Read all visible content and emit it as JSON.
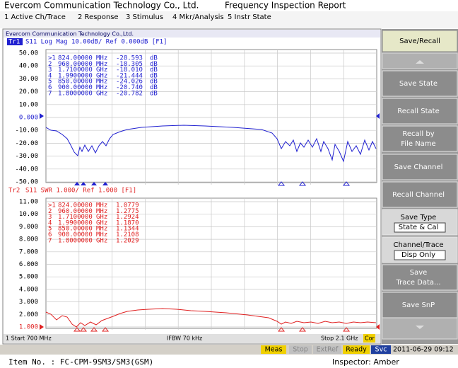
{
  "header": {
    "title": "Evercom Communication Technology Co., Ltd.",
    "report": "Frequency Inspection Report"
  },
  "menu": [
    "1 Active Ch/Trace",
    "2 Response",
    "3 Stimulus",
    "4 Mkr/Analysis",
    "5 Instr State"
  ],
  "screen": {
    "channel_title": "Evercom Communication Technology Co.,Ltd.",
    "trace1": {
      "label": "Tr1",
      "info": "S11 Log Mag 10.00dB/ Ref 0.000dB [F1]",
      "yticks": [
        "50.00",
        "40.00",
        "30.00",
        "20.00",
        "10.00",
        "0.000",
        "-10.00",
        "-20.00",
        "-30.00",
        "-40.00",
        "-50.00"
      ],
      "markers": [
        [
          ">1",
          "824.00000",
          "MHz",
          "-28.593",
          "dB"
        ],
        [
          "2",
          "960.00000",
          "MHz",
          "-18.305",
          "dB"
        ],
        [
          "3",
          "1.7100000",
          "GHz",
          "-18.010",
          "dB"
        ],
        [
          "4",
          "1.9900000",
          "GHz",
          "-21.444",
          "dB"
        ],
        [
          "5",
          "850.00000",
          "MHz",
          "-24.026",
          "dB"
        ],
        [
          "6",
          "900.00000",
          "MHz",
          "-20.740",
          "dB"
        ],
        [
          "7",
          "1.8000000",
          "GHz",
          "-20.782",
          "dB"
        ]
      ]
    },
    "trace2": {
      "label": "Tr2",
      "info": "S11  SWR 1.000/ Ref 1.000 [F1]",
      "yticks": [
        "11.00",
        "10.00",
        "9.000",
        "8.000",
        "7.000",
        "6.000",
        "5.000",
        "4.000",
        "3.000",
        "2.000",
        "1.000"
      ],
      "markers": [
        [
          ">1",
          "824.00000",
          "MHz",
          "1.0779"
        ],
        [
          "2",
          "960.00000",
          "MHz",
          "1.2775"
        ],
        [
          "3",
          "1.7100000",
          "GHz",
          "1.2924"
        ],
        [
          "4",
          "1.9900000",
          "GHz",
          "1.1870"
        ],
        [
          "5",
          "850.00000",
          "MHz",
          "1.1344"
        ],
        [
          "6",
          "900.00000",
          "MHz",
          "1.2108"
        ],
        [
          "7",
          "1.8000000",
          "GHz",
          "1.2029"
        ]
      ]
    }
  },
  "status": {
    "start": "1  Start 700 MHz",
    "ifbw": "IFBW 70 kHz",
    "stop": "Stop 2.1 GHz",
    "cor": "Cor"
  },
  "softkeys": {
    "title": "Save/Recall",
    "keys": [
      [
        "Save State"
      ],
      [
        "Recall State"
      ],
      [
        "Recall by",
        "File Name"
      ],
      [
        "Save Channel"
      ],
      [
        "Recall Channel"
      ],
      [
        "Save Type",
        "State & Cal"
      ],
      [
        "Channel/Trace",
        "Disp Only"
      ],
      [
        "Save",
        "Trace Data..."
      ],
      [
        "Save SnP"
      ]
    ]
  },
  "statusbar": [
    "Meas",
    "Stop",
    "ExtRef",
    "Ready",
    "Svc"
  ],
  "datetime": "2011-06-29 09:12",
  "footer": {
    "item": "Item No. : FC-CPM-9SM3/SM3(GSM)",
    "inspector": "Inspector:  Amber"
  }
}
